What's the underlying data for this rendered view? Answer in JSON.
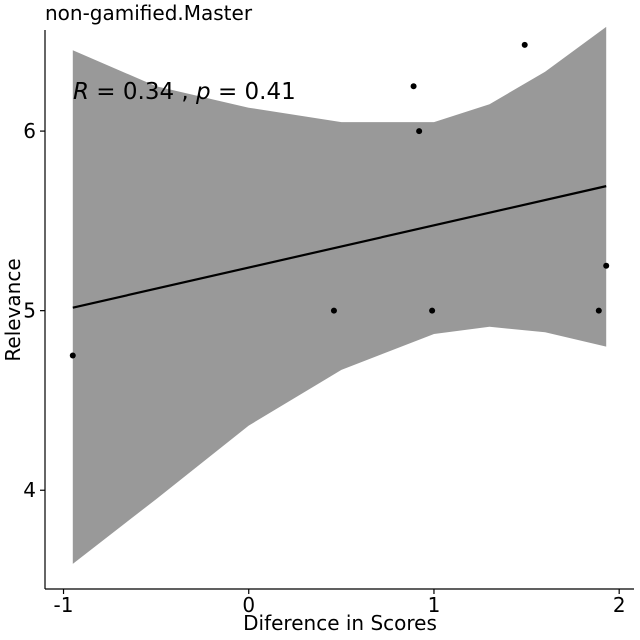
{
  "chart_data": {
    "type": "scatter",
    "title": "non-gamified.Master",
    "xlabel": "Diference in Scores",
    "ylabel": "Relevance",
    "xlim": [
      -1.1,
      2.08
    ],
    "ylim": [
      3.45,
      6.73
    ],
    "x_ticks": [
      -1,
      0,
      1,
      2
    ],
    "x_tick_labels": [
      "-1",
      "0",
      "1",
      "2"
    ],
    "y_ticks": [
      4,
      5,
      6
    ],
    "y_tick_labels": [
      "4",
      "5",
      "6"
    ],
    "grid": false,
    "legend": "none",
    "points": [
      {
        "x": -0.95,
        "y": 4.75
      },
      {
        "x": 0.46,
        "y": 5.0
      },
      {
        "x": 0.89,
        "y": 6.25
      },
      {
        "x": 0.92,
        "y": 6.0
      },
      {
        "x": 0.99,
        "y": 5.0
      },
      {
        "x": 1.49,
        "y": 6.48
      },
      {
        "x": 1.89,
        "y": 5.0
      },
      {
        "x": 1.93,
        "y": 5.25
      }
    ],
    "regression": {
      "x_range": [
        -0.95,
        1.93
      ],
      "intercept": 5.24,
      "slope": 0.235,
      "band": {
        "x": [
          -0.95,
          -0.5,
          0,
          0.5,
          1.0,
          1.3,
          1.6,
          1.93
        ],
        "lower": [
          3.59,
          3.95,
          4.36,
          4.67,
          4.87,
          4.91,
          4.88,
          4.8
        ],
        "upper": [
          6.45,
          6.25,
          6.13,
          6.05,
          6.05,
          6.15,
          6.33,
          6.58
        ]
      }
    },
    "annotation": {
      "R_symbol": "R",
      "r_value": " = 0.34 , ",
      "p_symbol": "p",
      "p_value": " = 0.41"
    },
    "colors": {
      "band": "#999999",
      "line": "#000000",
      "points": "#000000",
      "axis": "#000000"
    }
  }
}
